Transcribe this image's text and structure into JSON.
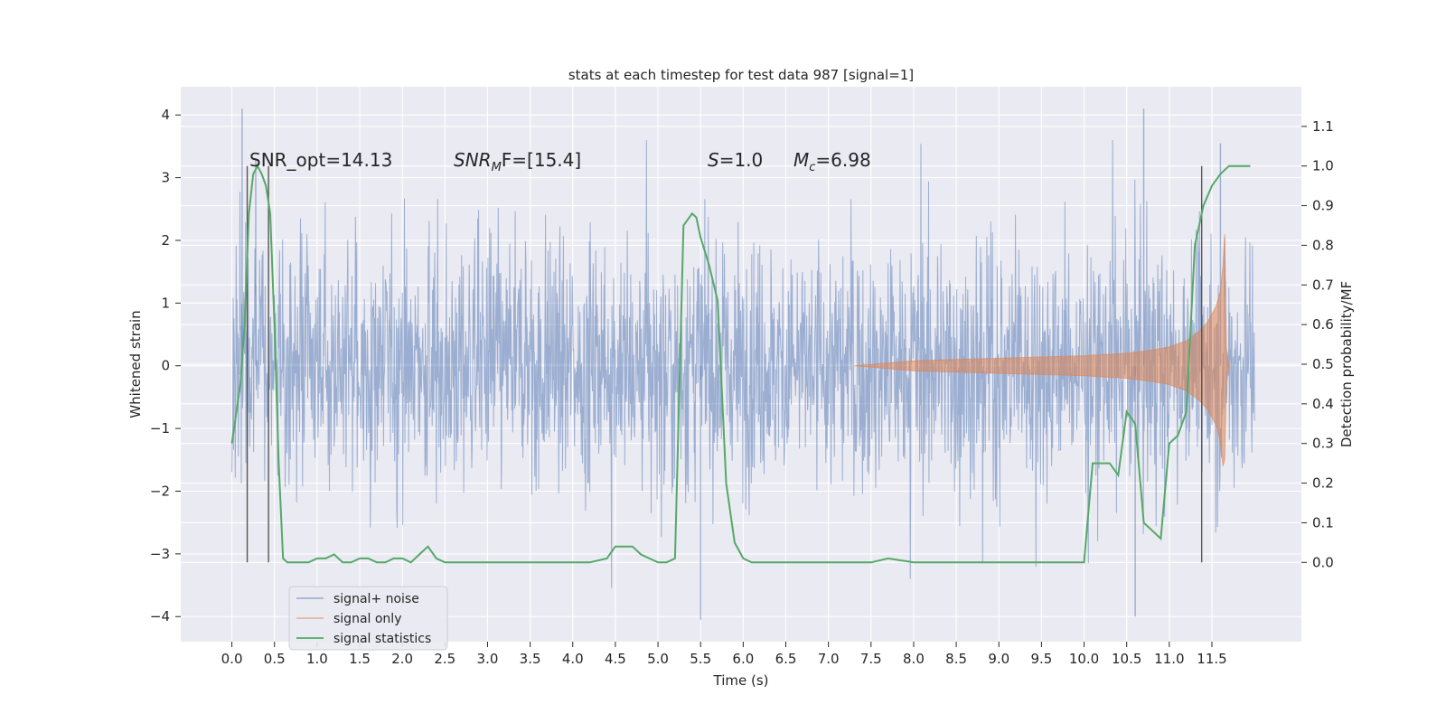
{
  "chart_data": {
    "type": "line",
    "title": "stats at each timestep for test data 987 [signal=1]",
    "xlabel": "Time (s)",
    "ylabel_left": "Whitened strain",
    "ylabel_right": "Detection probability/MF",
    "xlim": [
      -0.6,
      12.55
    ],
    "ylim_left": [
      -4.4,
      4.45
    ],
    "ylim_right": [
      -0.2,
      1.2
    ],
    "x_ticks": [
      "0.0",
      "0.5",
      "1.0",
      "1.5",
      "2.0",
      "2.5",
      "3.0",
      "3.5",
      "4.0",
      "4.5",
      "5.0",
      "5.5",
      "6.0",
      "6.5",
      "7.0",
      "7.5",
      "8.0",
      "8.5",
      "9.0",
      "9.5",
      "10.0",
      "10.5",
      "11.0",
      "11.5"
    ],
    "y_ticks_left": [
      "4",
      "3",
      "2",
      "1",
      "0",
      "−1",
      "−2",
      "−3",
      "−4"
    ],
    "y_ticks_right": [
      "1.1",
      "1.0",
      "0.9",
      "0.8",
      "0.7",
      "0.6",
      "0.5",
      "0.4",
      "0.3",
      "0.2",
      "0.1",
      "0.0"
    ],
    "grid": true,
    "annotations": {
      "snr_opt": "SNR_opt=14.13",
      "snr_mf_italic": "SNR",
      "snr_mf_sub": "M",
      "snr_mf_rest": "F=[15.4]",
      "s_italic": "S",
      "s_rest": "=1.0",
      "mc_italic": "M",
      "mc_sub": "c",
      "mc_rest": "=6.98"
    },
    "legend": {
      "position": "lower-left",
      "items": [
        "signal+ noise",
        "signal only",
        "signal statistics"
      ]
    },
    "colors": {
      "signal_noise": "#4c72b0",
      "signal_only": "#dd8452",
      "signal_statistics": "#55a868",
      "background": "#eaeaf2",
      "markers": "#555555"
    },
    "series": [
      {
        "name": "signal statistics",
        "axis": "right",
        "x": [
          0.0,
          0.1,
          0.15,
          0.2,
          0.25,
          0.3,
          0.35,
          0.4,
          0.45,
          0.5,
          0.55,
          0.6,
          0.65,
          0.7,
          0.8,
          0.9,
          1.0,
          1.1,
          1.2,
          1.3,
          1.4,
          1.5,
          1.6,
          1.7,
          1.8,
          1.9,
          2.0,
          2.1,
          2.2,
          2.3,
          2.4,
          2.5,
          2.6,
          2.7,
          2.8,
          3.0,
          3.5,
          4.0,
          4.2,
          4.4,
          4.5,
          4.6,
          4.7,
          4.8,
          4.9,
          5.0,
          5.1,
          5.2,
          5.3,
          5.4,
          5.45,
          5.5,
          5.6,
          5.7,
          5.8,
          5.9,
          6.0,
          6.1,
          6.2,
          6.3,
          6.5,
          7.0,
          7.5,
          7.7,
          8.0,
          8.3,
          8.5,
          9.0,
          9.5,
          9.8,
          10.0,
          10.1,
          10.2,
          10.3,
          10.4,
          10.5,
          10.6,
          10.7,
          10.8,
          10.9,
          11.0,
          11.1,
          11.2,
          11.3,
          11.4,
          11.5,
          11.6,
          11.7,
          11.8,
          11.9,
          11.95
        ],
        "values": [
          0.3,
          0.45,
          0.6,
          0.88,
          0.98,
          1.0,
          0.98,
          0.95,
          0.88,
          0.6,
          0.25,
          0.01,
          0.0,
          0.0,
          0.0,
          0.0,
          0.01,
          0.01,
          0.02,
          0.0,
          0.0,
          0.01,
          0.01,
          0.0,
          0.0,
          0.01,
          0.01,
          0.0,
          0.02,
          0.04,
          0.01,
          0.0,
          0.0,
          0.0,
          0.0,
          0.0,
          0.0,
          0.0,
          0.0,
          0.01,
          0.04,
          0.04,
          0.04,
          0.02,
          0.01,
          0.0,
          0.0,
          0.01,
          0.85,
          0.88,
          0.87,
          0.82,
          0.75,
          0.66,
          0.2,
          0.05,
          0.01,
          0.0,
          0.0,
          0.0,
          0.0,
          0.0,
          0.0,
          0.01,
          0.0,
          0.0,
          0.0,
          0.0,
          0.0,
          0.0,
          0.0,
          0.25,
          0.25,
          0.25,
          0.22,
          0.38,
          0.35,
          0.1,
          0.08,
          0.06,
          0.3,
          0.32,
          0.38,
          0.8,
          0.9,
          0.95,
          0.98,
          1.0,
          1.0,
          1.0,
          1.0
        ]
      },
      {
        "name": "signal only",
        "axis": "left",
        "envelope": {
          "x": [
            7.3,
            8.0,
            8.5,
            9.0,
            9.5,
            10.0,
            10.5,
            10.8,
            11.0,
            11.2,
            11.35,
            11.45,
            11.55,
            11.6,
            11.63,
            11.65,
            11.67,
            11.7
          ],
          "upper": [
            0.0,
            0.08,
            0.1,
            0.12,
            0.14,
            0.16,
            0.2,
            0.25,
            0.3,
            0.4,
            0.55,
            0.7,
            0.95,
            1.2,
            1.6,
            2.1,
            0.3,
            0.0
          ],
          "lower": [
            0.0,
            -0.08,
            -0.1,
            -0.12,
            -0.14,
            -0.16,
            -0.2,
            -0.25,
            -0.3,
            -0.4,
            -0.55,
            -0.7,
            -0.95,
            -1.2,
            -1.6,
            -1.5,
            -0.3,
            0.0
          ]
        }
      },
      {
        "name": "signal+ noise",
        "axis": "left",
        "x_range": [
          0.0,
          12.0
        ],
        "typical_amplitude": 1.3,
        "peak_values": [
          {
            "x": 0.12,
            "y": 4.1
          },
          {
            "x": 0.28,
            "y": 3.3
          },
          {
            "x": 10.7,
            "y": 4.1
          },
          {
            "x": 11.6,
            "y": 3.55
          },
          {
            "x": 5.5,
            "y": -4.05
          },
          {
            "x": 10.6,
            "y": -4.0
          }
        ]
      }
    ],
    "vertical_markers_x": [
      0.18,
      0.43,
      11.38
    ]
  }
}
